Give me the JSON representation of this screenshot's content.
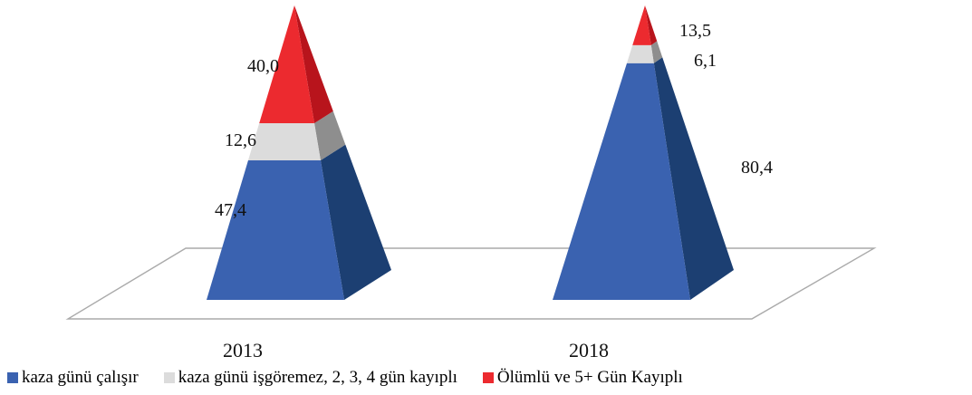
{
  "chart_data": {
    "type": "bar",
    "style": "3d-pyramid-stacked",
    "title": "",
    "xlabel": "",
    "ylabel": "",
    "categories": [
      "2013",
      "2018"
    ],
    "series": [
      {
        "name": "kaza günü çalışır",
        "values": [
          47.4,
          80.4
        ],
        "labels": [
          "47,4",
          "80,4"
        ],
        "color": "#3a62b0",
        "side_color": "#1c3f72"
      },
      {
        "name": "kaza günü işgöremez, 2, 3, 4 gün kayıplı",
        "values": [
          12.6,
          6.1
        ],
        "labels": [
          "12,6",
          "6,1"
        ],
        "color": "#dcdcdc",
        "side_color": "#8e8e8e"
      },
      {
        "name": "Ölümlü ve 5+ Gün Kayıplı",
        "values": [
          40.0,
          13.5
        ],
        "labels": [
          "40,0",
          "13,5"
        ],
        "color": "#ec2a2f",
        "side_color": "#b8141c"
      }
    ],
    "ylim": [
      0,
      100
    ],
    "grid": false,
    "legend_position": "bottom"
  }
}
